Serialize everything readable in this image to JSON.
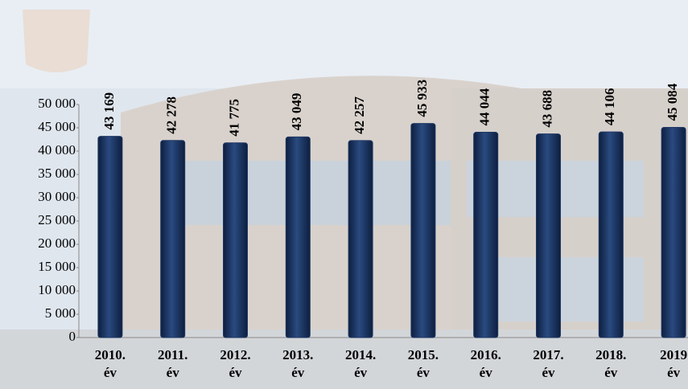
{
  "chart_data": {
    "type": "bar",
    "categories": [
      [
        "2010.",
        "év"
      ],
      [
        "2011.",
        "év"
      ],
      [
        "2012.",
        "év"
      ],
      [
        "2013.",
        "év"
      ],
      [
        "2014.",
        "év"
      ],
      [
        "2015.",
        "év"
      ],
      [
        "2016.",
        "év"
      ],
      [
        "2017.",
        "év"
      ],
      [
        "2018.",
        "év"
      ],
      [
        "2019",
        "év"
      ]
    ],
    "values": [
      43169,
      42278,
      41775,
      43049,
      42257,
      45933,
      44044,
      43688,
      44106,
      45084
    ],
    "value_labels": [
      "43 169",
      "42 278",
      "41 775",
      "43 049",
      "42 257",
      "45 933",
      "44 044",
      "43 688",
      "44 106",
      "45 084"
    ],
    "color": "#1f3864",
    "ylim": [
      0,
      50000
    ],
    "yticks": [
      0,
      {
        "value": 5000,
        "label": "5 000"
      },
      {
        "value": 10000,
        "label": "10 000"
      },
      {
        "value": 15000,
        "label": "15 000"
      },
      {
        "value": 20000,
        "label": "20 000"
      },
      {
        "value": 25000,
        "label": "25 000"
      },
      {
        "value": 30000,
        "label": "30 000"
      },
      {
        "value": 35000,
        "label": "35 000"
      },
      {
        "value": 40000,
        "label": "40 000"
      },
      {
        "value": 45000,
        "label": "45 000"
      },
      {
        "value": 50000,
        "label": "50 000"
      }
    ],
    "grid": false
  }
}
